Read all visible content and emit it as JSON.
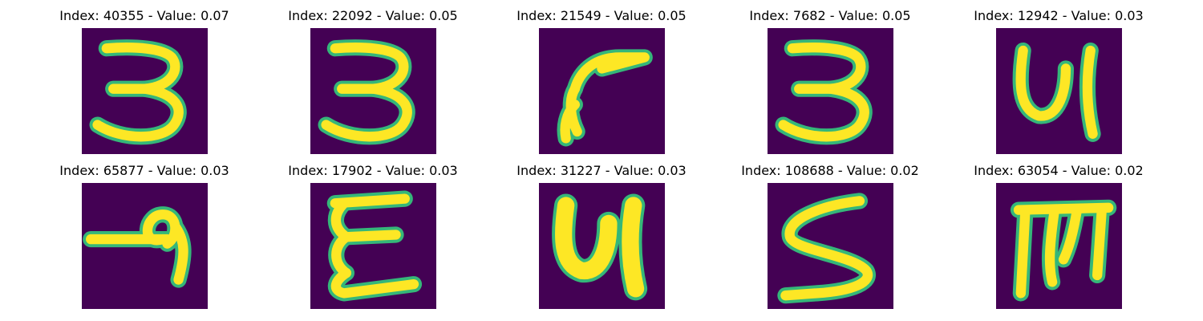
{
  "colors": {
    "background": "#440154",
    "stroke_core": "#fde725",
    "stroke_edge": "#35b779"
  },
  "panels": [
    {
      "title": "Index: 40355 - Value: 0.07",
      "glyph": "3"
    },
    {
      "title": "Index: 22092 - Value: 0.05",
      "glyph": "3"
    },
    {
      "title": "Index: 21549 - Value: 0.05",
      "glyph": "hook"
    },
    {
      "title": "Index: 7682 - Value: 0.05",
      "glyph": "3"
    },
    {
      "title": "Index: 12942 - Value: 0.03",
      "glyph": "N"
    },
    {
      "title": "Index: 65877 - Value: 0.03",
      "glyph": "loop"
    },
    {
      "title": "Index: 17902 - Value: 0.03",
      "glyph": "E"
    },
    {
      "title": "Index: 31227 - Value: 0.03",
      "glyph": "N"
    },
    {
      "title": "Index: 108688 - Value: 0.02",
      "glyph": "S"
    },
    {
      "title": "Index: 63054 - Value: 0.02",
      "glyph": "M"
    }
  ]
}
